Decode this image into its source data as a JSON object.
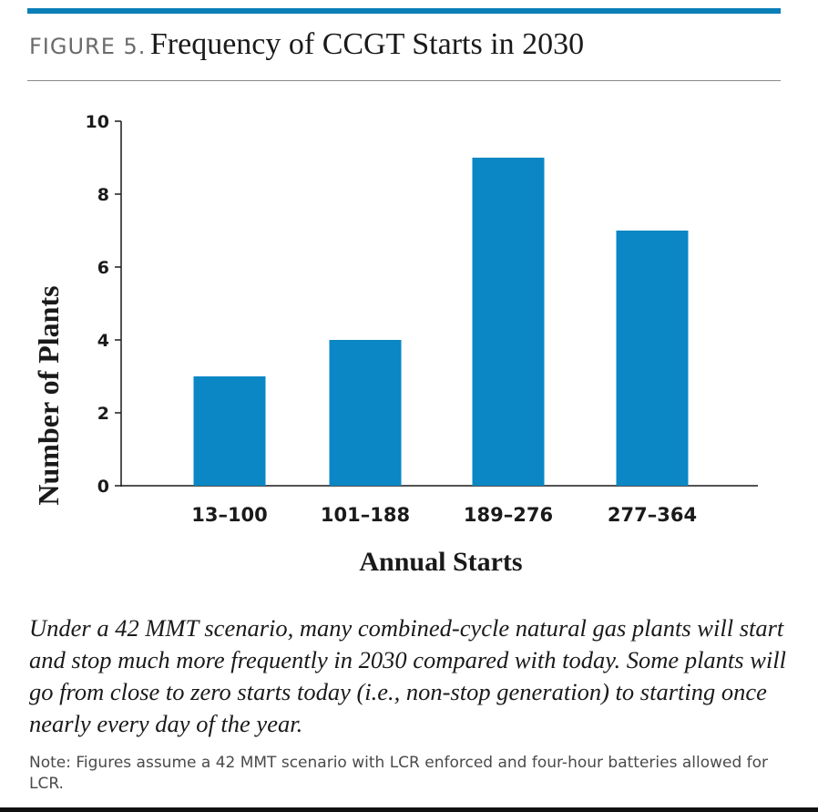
{
  "figure": {
    "label": "FIGURE 5.",
    "title": "Frequency of CCGT Starts in 2030"
  },
  "chart_data": {
    "type": "bar",
    "categories": [
      "13–100",
      "101–188",
      "189–276",
      "277–364"
    ],
    "values": [
      3,
      4,
      9,
      7
    ],
    "xlabel": "Annual Starts",
    "ylabel": "Number of Plants",
    "ylim": [
      0,
      10
    ],
    "yticks": [
      0,
      2,
      4,
      6,
      8,
      10
    ],
    "grid": false,
    "bar_color": "#0a87c4"
  },
  "caption": "Under a 42 MMT scenario, many combined-cycle natural gas plants will start and stop much more frequently in 2030 compared with today. Some plants will go from close to zero starts today (i.e., non-stop generation) to starting once nearly every day of the year.",
  "note": "Note: Figures assume a 42 MMT scenario with LCR enforced and four-hour batteries allowed for LCR.",
  "colors": {
    "accent": "#0a7fb8",
    "bar": "#0a87c4"
  }
}
